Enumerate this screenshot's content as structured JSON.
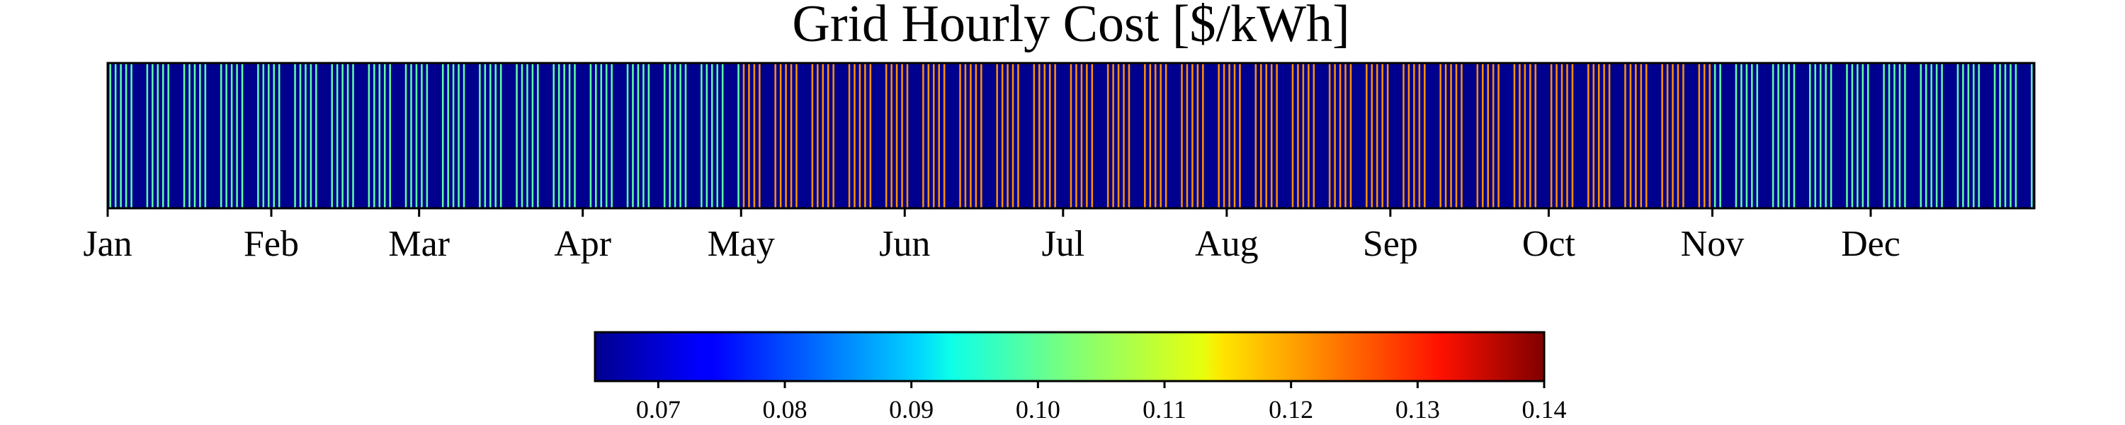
{
  "chart_data": {
    "type": "heatmap",
    "title": "Grid Hourly Cost [$/kWh]",
    "x_tick_labels": [
      "Jan",
      "Feb",
      "Mar",
      "Apr",
      "May",
      "Jun",
      "Jul",
      "Aug",
      "Sep",
      "Oct",
      "Nov",
      "Dec"
    ],
    "x_tick_days": [
      1,
      32,
      60,
      91,
      121,
      152,
      182,
      213,
      244,
      274,
      305,
      335
    ],
    "year_days": 365,
    "weekday_daily_value": {
      "winter": 0.1,
      "summer": 0.12
    },
    "weekend_daily_value": 0.065,
    "summer_season": {
      "start_month": "May",
      "end_month": "Oct"
    },
    "colormap": "jet",
    "colorbar": {
      "vmin": 0.065,
      "vmax": 0.14,
      "ticks": [
        "0.07",
        "0.08",
        "0.09",
        "0.10",
        "0.11",
        "0.12",
        "0.13",
        "0.14"
      ],
      "tick_values": [
        0.07,
        0.08,
        0.09,
        0.1,
        0.11,
        0.12,
        0.13,
        0.14
      ]
    },
    "y_axis_visible": false,
    "grid": false
  }
}
